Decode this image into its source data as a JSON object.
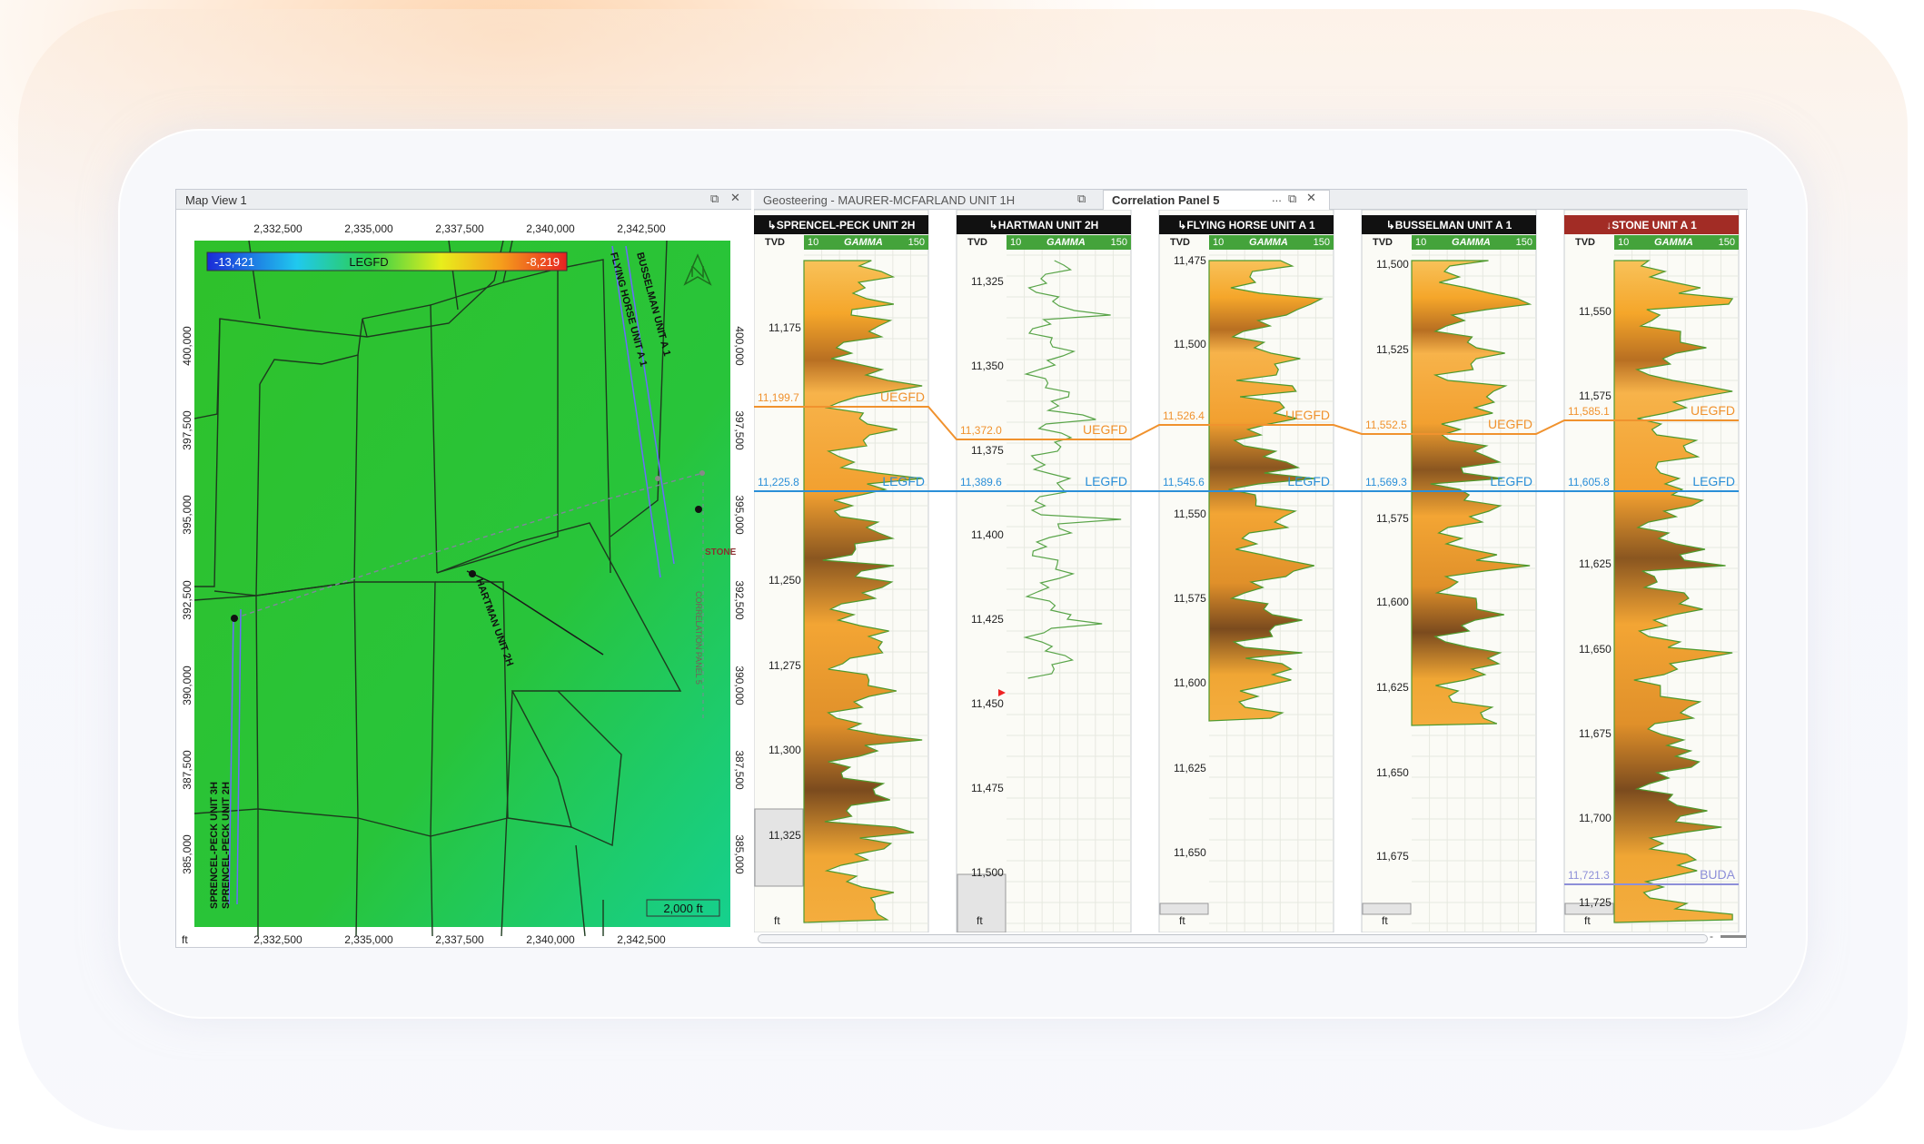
{
  "map": {
    "title": "Map View 1",
    "colorbar": {
      "min_label": "-13,421",
      "center_label": "LEGFD",
      "max_label": "-8,219"
    },
    "x_ticks": [
      "2,332,500",
      "2,335,000",
      "2,337,500",
      "2,340,000",
      "2,342,500"
    ],
    "y_ticks_left": [
      "400,000",
      "397,500",
      "395,000",
      "392,500",
      "390,000",
      "387,500",
      "385,000"
    ],
    "y_ticks_right": [
      "400,000",
      "397,500",
      "395,000",
      "392,500",
      "390,000",
      "387,500",
      "385,000"
    ],
    "unit": "ft",
    "scale_label": "2,000 ft",
    "well_labels": [
      "HARTMAN UNIT 2H",
      "SPRENCEL-PECK UNIT 3H",
      "SPRENCEL-PECK UNIT 2H",
      "FLYING HORSE UNIT A 1",
      "BUSSELMAN UNIT A 1",
      "STONE",
      "CORRELATION PANEL 5"
    ]
  },
  "tabs": {
    "geosteering": "Geosteering - MAURER-MCFARLAND UNIT 1H",
    "correlation": "Correlation Panel 5",
    "more": "..."
  },
  "tracks": [
    {
      "name": "SPRENCEL-PECK UNIT 2H",
      "tvd_label": "TVD",
      "gamma": {
        "min": "10",
        "label": "GAMMA",
        "max": "150"
      },
      "depths": [
        "11,175",
        "11,250",
        "11,275",
        "11,300",
        "11,325"
      ],
      "tops": [
        {
          "value": "11,199.7",
          "name": "UEGFD"
        },
        {
          "value": "11,225.8",
          "name": "LEGFD"
        }
      ],
      "unit": "ft"
    },
    {
      "name": "HARTMAN UNIT 2H",
      "tvd_label": "TVD",
      "gamma": {
        "min": "10",
        "label": "GAMMA",
        "max": "150"
      },
      "depths": [
        "11,325",
        "11,350",
        "11,375",
        "11,400",
        "11,425",
        "11,450",
        "11,475",
        "11,500"
      ],
      "tops": [
        {
          "value": "11,372.0",
          "name": "UEGFD"
        },
        {
          "value": "11,389.6",
          "name": "LEGFD"
        }
      ],
      "unit": "ft"
    },
    {
      "name": "FLYING HORSE UNIT A 1",
      "tvd_label": "TVD",
      "gamma": {
        "min": "10",
        "label": "GAMMA",
        "max": "150"
      },
      "depths": [
        "11,475",
        "11,500",
        "11,550",
        "11,575",
        "11,600",
        "11,625",
        "11,650"
      ],
      "tops": [
        {
          "value": "11,526.4",
          "name": "UEGFD"
        },
        {
          "value": "11,545.6",
          "name": "LEGFD"
        }
      ],
      "unit": "ft"
    },
    {
      "name": "BUSSELMAN UNIT A 1",
      "tvd_label": "TVD",
      "gamma": {
        "min": "10",
        "label": "GAMMA",
        "max": "150"
      },
      "depths": [
        "11,500",
        "11,525",
        "11,575",
        "11,600",
        "11,625",
        "11,650",
        "11,675"
      ],
      "tops": [
        {
          "value": "11,552.5",
          "name": "UEGFD"
        },
        {
          "value": "11,569.3",
          "name": "LEGFD"
        }
      ],
      "unit": "ft"
    },
    {
      "name": "STONE UNIT A 1",
      "tvd_label": "TVD",
      "gamma": {
        "min": "10",
        "label": "GAMMA",
        "max": "150"
      },
      "depths": [
        "11,550",
        "11,575",
        "11,625",
        "11,650",
        "11,675",
        "11,700",
        "11,725"
      ],
      "tops": [
        {
          "value": "11,585.1",
          "name": "UEGFD"
        },
        {
          "value": "11,605.8",
          "name": "LEGFD"
        },
        {
          "value": "11,721.3",
          "name": "BUDA"
        }
      ],
      "unit": "ft"
    }
  ],
  "colors": {
    "uegfd": "#f0922e",
    "legfd": "#2a8fd8",
    "buda": "#8d8fd8",
    "gamma_header": "#44a33b",
    "stone_header": "#a22c25"
  }
}
